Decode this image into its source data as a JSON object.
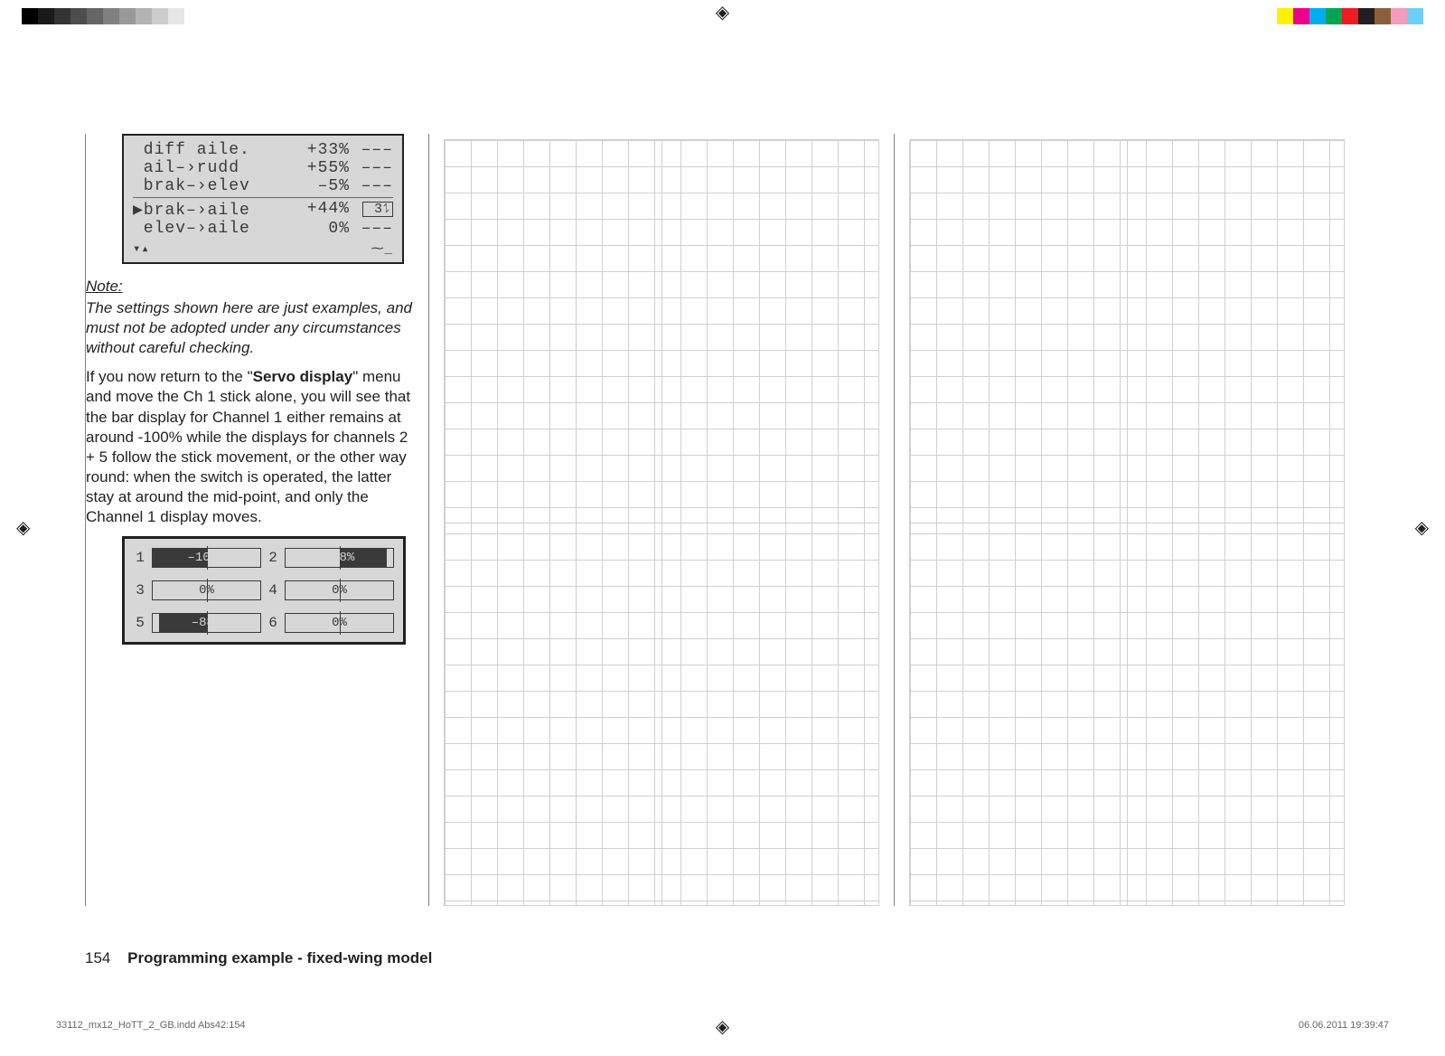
{
  "registration_glyph": "◈",
  "gray_swatches": [
    "#000000",
    "#1a1a1a",
    "#333333",
    "#4d4d4d",
    "#666666",
    "#808080",
    "#999999",
    "#b3b3b3",
    "#cccccc",
    "#e6e6e6",
    "#ffffff"
  ],
  "color_swatches": [
    "#fff200",
    "#ec008c",
    "#00aeef",
    "#00a651",
    "#ed1c24",
    "#231f20",
    "#8b5e3c",
    "#f49ac1",
    "#6dcff6"
  ],
  "mixer": {
    "rows": [
      {
        "name": "diff aile.",
        "val": "+33%",
        "sw": "–––",
        "sel": false
      },
      {
        "name": "ail–›rudd",
        "val": "+55%",
        "sw": "–––",
        "sel": false
      },
      {
        "name": "brak–›elev",
        "val": "–5%",
        "sw": "–––",
        "sel": false
      },
      {
        "name": "brak–›aile",
        "val": "+44%",
        "sw": "3",
        "sel": true,
        "chip": true
      },
      {
        "name": "elev–›aile",
        "val": "0%",
        "sw": "–––",
        "sel": false
      }
    ],
    "bottom_left": "▾▴",
    "bottom_right": "⁓_"
  },
  "note_heading": "Note:",
  "note_body": "The settings shown here are just examples, and must not be adopted under any circumstances without careful checking.",
  "para": "If you now return to the \"",
  "para_bold": "Servo display",
  "para2": "\" menu and move the Ch 1 stick alone, you will see that the bar display for Channel 1 either remains at around -100% while the displays for channels 2 + 5 follow the stick movement, or the other way round: when the switch is operated, the latter stay at around the mid-point, and only the Channel 1 display moves.",
  "servo": {
    "channels": [
      {
        "n": "1",
        "pct": -100,
        "label": "–100%"
      },
      {
        "n": "2",
        "pct": 88,
        "label": "+88%"
      },
      {
        "n": "3",
        "pct": 0,
        "label": "0%"
      },
      {
        "n": "4",
        "pct": 0,
        "label": "0%"
      },
      {
        "n": "5",
        "pct": -88,
        "label": "–88%"
      },
      {
        "n": "6",
        "pct": 0,
        "label": "0%"
      }
    ]
  },
  "footer": {
    "page": "154",
    "title": "Programming example - fixed-wing model"
  },
  "indd": {
    "left": "33112_mx12_HoTT_2_GB.indd   Abs42:154",
    "right": "06.06.2011   19:39:47"
  },
  "colors": {
    "lcd_bg": "#d7d7d7",
    "lcd_text": "#3a3a3a",
    "page_text": "#231f20",
    "rule": "#808080",
    "grid": "#d0d0d0"
  }
}
